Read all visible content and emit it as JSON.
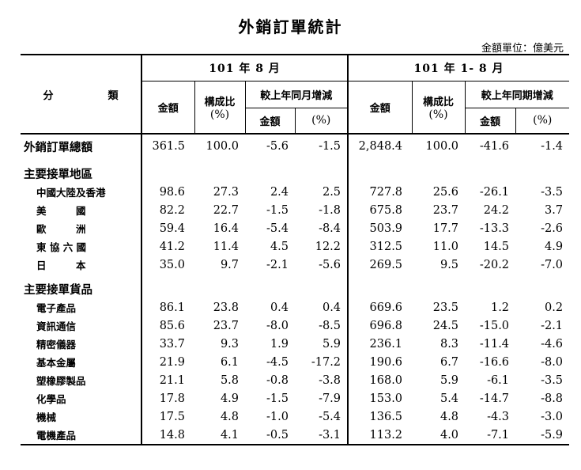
{
  "title": "外銷訂單統計",
  "unit": "金額單位：億美元",
  "header": {
    "category": "分　類",
    "period_month": "101 年 8 月",
    "period_ytd": "101 年 1- 8 月",
    "amount": "金額",
    "share": "構成比",
    "pct": "(%)",
    "yoy_month": "較上年同月增減",
    "yoy_period": "較上年同期增減",
    "change_amount": "金額",
    "change_pct": "(%)"
  },
  "rows": [
    {
      "type": "total",
      "label": "外銷訂單總額",
      "values": [
        "361.5",
        "100.0",
        "-5.6",
        "-1.5",
        "2,848.4",
        "100.0",
        "-41.6",
        "-1.4"
      ]
    },
    {
      "type": "section",
      "label": "主要接單地區"
    },
    {
      "type": "item",
      "label": "中國大陸及香港",
      "values": [
        "98.6",
        "27.3",
        "2.4",
        "2.5",
        "727.8",
        "25.6",
        "-26.1",
        "-3.5"
      ]
    },
    {
      "type": "item",
      "label": "美　　　國",
      "values": [
        "82.2",
        "22.7",
        "-1.5",
        "-1.8",
        "675.8",
        "23.7",
        "24.2",
        "3.7"
      ]
    },
    {
      "type": "item",
      "label": "歐　　　洲",
      "values": [
        "59.4",
        "16.4",
        "-5.4",
        "-8.4",
        "503.9",
        "17.7",
        "-13.3",
        "-2.6"
      ]
    },
    {
      "type": "item",
      "label": "東 協 六 國",
      "values": [
        "41.2",
        "11.4",
        "4.5",
        "12.2",
        "312.5",
        "11.0",
        "14.5",
        "4.9"
      ]
    },
    {
      "type": "item",
      "label": "日　　　本",
      "values": [
        "35.0",
        "9.7",
        "-2.1",
        "-5.6",
        "269.5",
        "9.5",
        "-20.2",
        "-7.0"
      ]
    },
    {
      "type": "section",
      "label": "主要接單貨品"
    },
    {
      "type": "item",
      "label": "電子產品",
      "values": [
        "86.1",
        "23.8",
        "0.4",
        "0.4",
        "669.6",
        "23.5",
        "1.2",
        "0.2"
      ]
    },
    {
      "type": "item",
      "label": "資訊通信",
      "values": [
        "85.6",
        "23.7",
        "-8.0",
        "-8.5",
        "696.8",
        "24.5",
        "-15.0",
        "-2.1"
      ]
    },
    {
      "type": "item",
      "label": "精密儀器",
      "values": [
        "33.7",
        "9.3",
        "1.9",
        "5.9",
        "236.1",
        "8.3",
        "-11.4",
        "-4.6"
      ]
    },
    {
      "type": "item",
      "label": "基本金屬",
      "values": [
        "21.9",
        "6.1",
        "-4.5",
        "-17.2",
        "190.6",
        "6.7",
        "-16.6",
        "-8.0"
      ]
    },
    {
      "type": "item",
      "label": "塑橡膠製品",
      "values": [
        "21.1",
        "5.8",
        "-0.8",
        "-3.8",
        "168.0",
        "5.9",
        "-6.1",
        "-3.5"
      ]
    },
    {
      "type": "item",
      "label": "化學品",
      "values": [
        "17.8",
        "4.9",
        "-1.5",
        "-7.9",
        "153.0",
        "5.4",
        "-14.7",
        "-8.8"
      ]
    },
    {
      "type": "item",
      "label": "機械",
      "values": [
        "17.5",
        "4.8",
        "-1.0",
        "-5.4",
        "136.5",
        "4.8",
        "-4.3",
        "-3.0"
      ]
    },
    {
      "type": "item",
      "label": "電機產品",
      "values": [
        "14.8",
        "4.1",
        "-0.5",
        "-3.1",
        "113.2",
        "4.0",
        "-7.1",
        "-5.9"
      ]
    }
  ]
}
